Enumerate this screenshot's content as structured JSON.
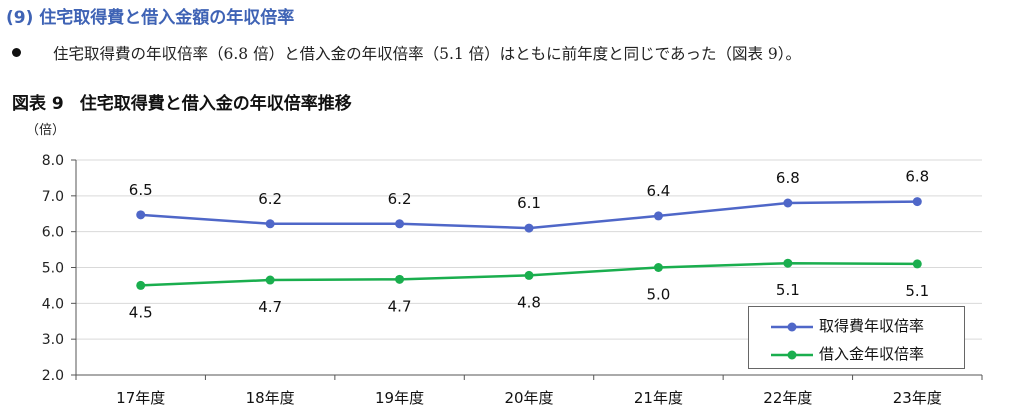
{
  "section_heading": "(9) 住宅取得費と借入金額の年収倍率",
  "bullet_text": "住宅取得費の年収倍率（6.8 倍）と借入金の年収倍率（5.1 倍）はともに前年度と同じであった（図表 9）。",
  "figure": {
    "number": "図表 9",
    "title": "住宅取得費と借入金の年収倍率推移"
  },
  "chart_data": {
    "type": "line",
    "ylabel": "（倍）",
    "categories": [
      "17年度",
      "18年度",
      "19年度",
      "20年度",
      "21年度",
      "22年度",
      "23年度"
    ],
    "ylim": [
      2.0,
      8.0
    ],
    "yticks": [
      "2.0",
      "3.0",
      "4.0",
      "5.0",
      "6.0",
      "7.0",
      "8.0"
    ],
    "grid": true,
    "legend_position": "bottom-right",
    "series": [
      {
        "name": "取得費年収倍率",
        "color": "#4f67c8",
        "values": [
          6.47,
          6.22,
          6.22,
          6.1,
          6.44,
          6.8,
          6.84
        ],
        "labels": [
          "6.5",
          "6.2",
          "6.2",
          "6.1",
          "6.4",
          "6.8",
          "6.8"
        ]
      },
      {
        "name": "借入金年収倍率",
        "color": "#1aae4e",
        "values": [
          4.5,
          4.65,
          4.67,
          4.78,
          5.0,
          5.12,
          5.1
        ],
        "labels": [
          "4.5",
          "4.7",
          "4.7",
          "4.8",
          "5.0",
          "5.1",
          "5.1"
        ]
      }
    ]
  }
}
